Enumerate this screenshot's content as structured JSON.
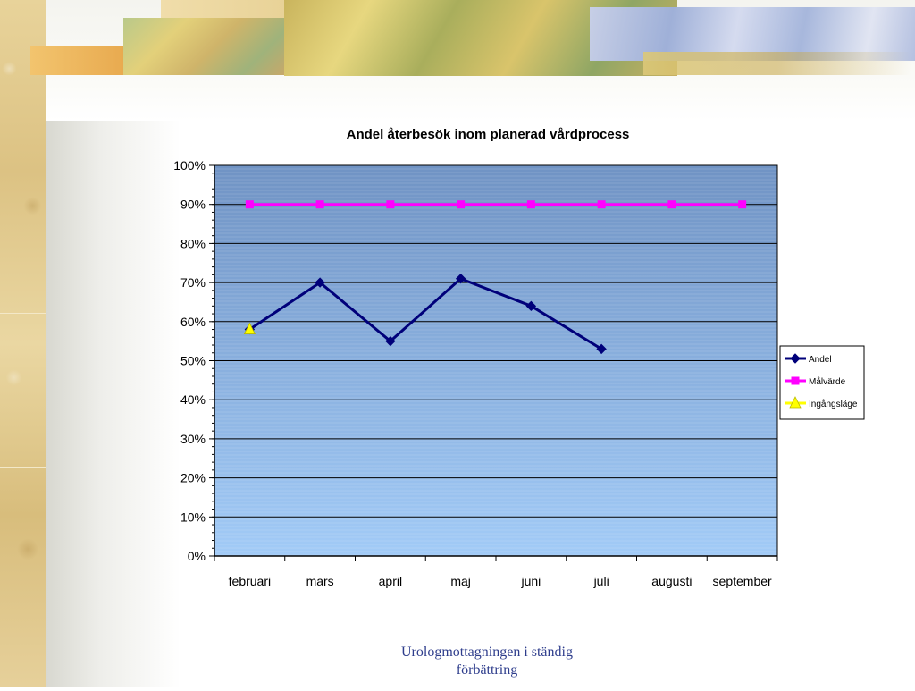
{
  "colors": {
    "plot_top": "#7093c4",
    "plot_bottom": "#a2cbf7",
    "andel": "#00007a",
    "malvarde": "#ff00ff",
    "ingangslage": "#ffff00"
  },
  "footer": {
    "line1": "Urologmottagningen i ständig",
    "line2": "förbättring"
  },
  "chart_data": {
    "type": "line",
    "title": "Andel återbesök inom planerad vårdprocess",
    "categories": [
      "februari",
      "mars",
      "april",
      "maj",
      "juni",
      "juli",
      "augusti",
      "september"
    ],
    "y_ticks": [
      "0%",
      "10%",
      "20%",
      "30%",
      "40%",
      "50%",
      "60%",
      "70%",
      "80%",
      "90%",
      "100%"
    ],
    "ylim": [
      0,
      100
    ],
    "grid": true,
    "legend_position": "right",
    "series": [
      {
        "name": "Andel",
        "marker": "diamond",
        "values": [
          58,
          70,
          55,
          71,
          64,
          53,
          null,
          null
        ]
      },
      {
        "name": "Målvärde",
        "marker": "square",
        "values": [
          90,
          90,
          90,
          90,
          90,
          90,
          90,
          90
        ]
      },
      {
        "name": "Ingångsläge",
        "marker": "triangle",
        "values": [
          58,
          null,
          null,
          null,
          null,
          null,
          null,
          null
        ]
      }
    ]
  }
}
